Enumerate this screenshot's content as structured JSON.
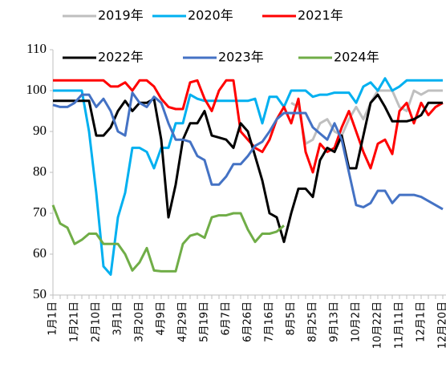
{
  "chart_data": {
    "type": "line",
    "categories": [
      "1月1日",
      null,
      null,
      "1月21日",
      null,
      null,
      "2月10日",
      null,
      null,
      "3月1日",
      null,
      null,
      "3月20日",
      null,
      null,
      "4月9日",
      null,
      null,
      "4月29日",
      null,
      null,
      "5月19日",
      null,
      null,
      "6月7日",
      null,
      null,
      "6月26日",
      null,
      null,
      "7月16日",
      null,
      null,
      "8月5日",
      null,
      null,
      "8月25日",
      null,
      null,
      "9月13日",
      null,
      null,
      "10月2日",
      null,
      null,
      "10月22日",
      null,
      null,
      "11月11日",
      null,
      null,
      "12月1日",
      null,
      null,
      "12月20日"
    ],
    "ylim": [
      50,
      110
    ],
    "yticks": [
      50,
      60,
      70,
      80,
      90,
      100,
      110
    ],
    "grid": false,
    "legend": "top",
    "series": [
      {
        "name": "2019年",
        "color": "#bfbfbf",
        "values": [
          null,
          null,
          null,
          null,
          null,
          null,
          null,
          null,
          null,
          null,
          null,
          null,
          null,
          null,
          null,
          null,
          null,
          null,
          null,
          null,
          null,
          null,
          null,
          null,
          null,
          null,
          null,
          null,
          null,
          null,
          null,
          null,
          null,
          97,
          96,
          87,
          88,
          92,
          93,
          90,
          89,
          93,
          96,
          93,
          97,
          100,
          100,
          100,
          96,
          95,
          100,
          99,
          100,
          100,
          100
        ]
      },
      {
        "name": "2020年",
        "color": "#00b0f0",
        "values": [
          100,
          100,
          100,
          100,
          100,
          90,
          75,
          57,
          55,
          69,
          75,
          86,
          86,
          85,
          81,
          86,
          86,
          92,
          92,
          99,
          98,
          97.5,
          97.5,
          97.5,
          97.5,
          97.5,
          97.5,
          97.5,
          98,
          92,
          98.5,
          98.5,
          96,
          100,
          100,
          100,
          98.5,
          99,
          99,
          99.5,
          99.5,
          99.5,
          97,
          101,
          102,
          100,
          103,
          100,
          101,
          102.5,
          102.5,
          102.5,
          102.5,
          102.5,
          102.5
        ]
      },
      {
        "name": "2021年",
        "color": "#ff0000",
        "values": [
          102.5,
          102.5,
          102.5,
          102.5,
          102.5,
          102.5,
          102.5,
          102.5,
          101,
          101,
          102,
          100,
          102.5,
          102.5,
          101,
          98,
          96,
          95.5,
          95.5,
          102,
          102.5,
          98,
          95,
          100,
          102.5,
          102.5,
          90,
          88,
          86,
          85,
          88,
          93,
          96,
          92,
          98,
          85,
          80,
          87,
          85,
          86,
          91,
          95,
          90,
          85,
          81,
          87,
          88,
          84.5,
          95,
          97,
          92,
          97,
          94,
          96,
          97
        ]
      },
      {
        "name": "2022年",
        "color": "#000000",
        "values": [
          97.5,
          97.5,
          97.5,
          97.5,
          97.5,
          97.5,
          89,
          89,
          91,
          95,
          97.5,
          95,
          97,
          97,
          98,
          88,
          69,
          77,
          88,
          92,
          92,
          95,
          89,
          88.5,
          88,
          86,
          92,
          90,
          84,
          78,
          70,
          69,
          63,
          70,
          76,
          76,
          74,
          83,
          86,
          85,
          89,
          81,
          81,
          89,
          97,
          99,
          96,
          92.5,
          92.5,
          92.5,
          93,
          94,
          97,
          97,
          97
        ]
      },
      {
        "name": "2023年",
        "color": "#4472c4",
        "values": [
          96.5,
          96,
          96,
          97,
          99,
          99,
          96,
          98,
          95,
          90,
          89,
          99.5,
          97,
          96,
          98.5,
          97,
          92,
          88,
          88,
          87.5,
          84,
          83,
          77,
          77,
          79,
          82,
          82,
          84,
          86.5,
          87.5,
          90,
          93,
          94.5,
          94.5,
          94.5,
          94.5,
          91,
          89.5,
          88,
          92,
          88,
          80,
          72,
          71.5,
          72.5,
          75.5,
          75.5,
          72.5,
          74.5,
          74.5,
          74.5,
          74,
          73,
          72,
          71
        ]
      },
      {
        "name": "2024年",
        "color": "#70ad47",
        "values": [
          72,
          67.5,
          66.5,
          62.5,
          63.5,
          65,
          65,
          62.5,
          62.5,
          62.5,
          60,
          56,
          58,
          61.5,
          56,
          55.8,
          55.8,
          55.8,
          62.5,
          64.5,
          65,
          64,
          69,
          69.5,
          69.5,
          70,
          70,
          66,
          63,
          65,
          65,
          65.5,
          67,
          null,
          null,
          null,
          null,
          null,
          null,
          null,
          null,
          null,
          null,
          null,
          null,
          null,
          null,
          null,
          null,
          null,
          null,
          null,
          null,
          null,
          null
        ]
      }
    ]
  }
}
